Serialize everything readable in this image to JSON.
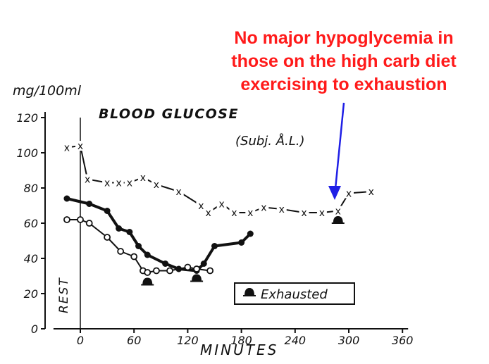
{
  "annotation": {
    "lines": [
      "No major hypoglycemia in",
      "those on the high carb diet",
      "exercising to exhaustion"
    ],
    "color": "#ff1a1a",
    "arrow_color": "#1f1fe6"
  },
  "chart_data": {
    "type": "line",
    "title": "BLOOD GLUCOSE",
    "subject": "(Subj. Å.L.)",
    "ylabel": "mg/100ml",
    "xlabel": "MINUTES",
    "rest_label": "REST",
    "xlim": [
      -30,
      360
    ],
    "ylim": [
      0,
      120
    ],
    "xticks": [
      "0",
      "60",
      "120",
      "180",
      "240",
      "300",
      "360"
    ],
    "yticks": [
      "0",
      "20",
      "40",
      "60",
      "80",
      "100",
      "120"
    ],
    "grid": false,
    "legend": {
      "label": "Exhausted",
      "placement": "bottom-right"
    },
    "series": [
      {
        "marker": "x",
        "x": [
          -15,
          0,
          8,
          30,
          43,
          55,
          70,
          85,
          110,
          135,
          143,
          158,
          172,
          190,
          205,
          225,
          250,
          270,
          288,
          300,
          325
        ],
        "y": [
          103,
          104,
          85,
          83,
          83,
          83,
          86,
          82,
          78,
          70,
          66,
          71,
          66,
          66,
          69,
          68,
          66,
          66,
          67,
          77,
          78
        ]
      },
      {
        "marker": "filled-circle",
        "x": [
          -15,
          10,
          30,
          43,
          55,
          65,
          75,
          95,
          110,
          130,
          138,
          150,
          180,
          190
        ],
        "y": [
          74,
          71,
          67,
          57,
          55,
          47,
          42,
          37,
          34,
          33,
          37,
          47,
          49,
          54
        ],
        "linewidth": "heavy"
      },
      {
        "marker": "open-circle",
        "x": [
          -15,
          0,
          10,
          30,
          45,
          60,
          70,
          75,
          85,
          100,
          120,
          130,
          145
        ],
        "y": [
          62,
          62,
          60,
          52,
          44,
          41,
          33,
          32,
          33,
          33,
          35,
          34,
          33
        ]
      }
    ],
    "exhausted_markers": [
      {
        "x": 75,
        "y": 25
      },
      {
        "x": 130,
        "y": 27
      },
      {
        "x": 288,
        "y": 60
      }
    ]
  }
}
